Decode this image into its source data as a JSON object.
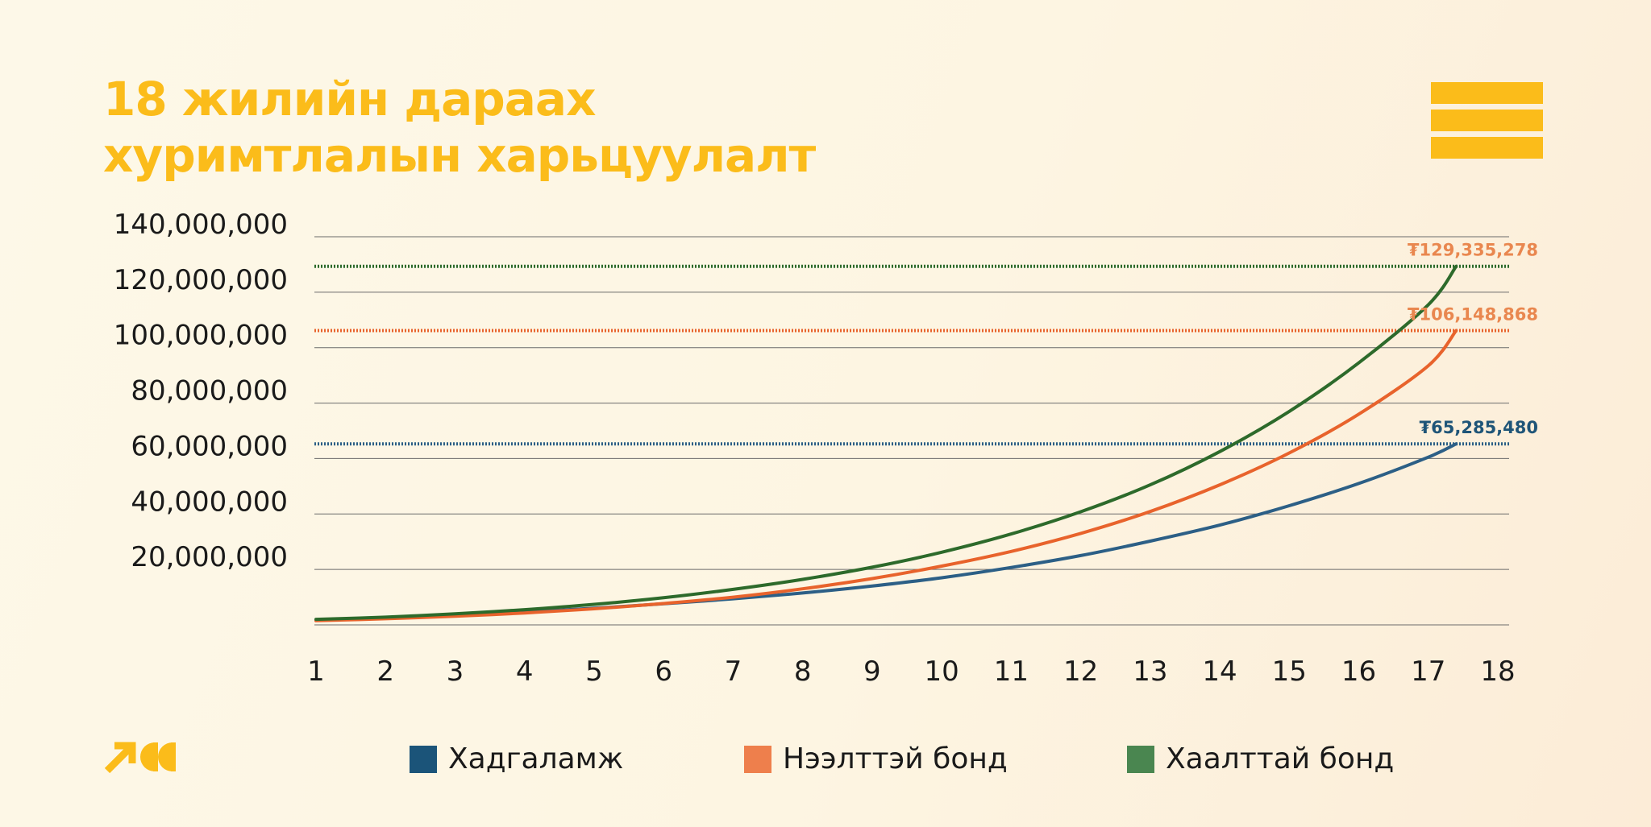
{
  "title": {
    "line1": "18 жилийн дараах",
    "line2": "хуримтлалын харьцуулалт"
  },
  "colors": {
    "accent": "#fbbc1a",
    "savings": "#2c5f86",
    "open_bond": "#e8632c",
    "closed_bond": "#2d6a2b",
    "savings_label": "#1f5578",
    "open_bond_label": "#e9874f",
    "closed_bond_label": "#e9874f",
    "legend_savings": "#1b5479",
    "legend_open_bond": "#ee7f4c",
    "legend_closed_bond": "#4a8650"
  },
  "icons": {
    "menu": "hamburger-menu-icon",
    "logo": "arrow-quote-logo"
  },
  "legend": [
    {
      "label": "Хадгаламж",
      "color_key": "legend_savings"
    },
    {
      "label": "Нээлттэй бонд",
      "color_key": "legend_open_bond"
    },
    {
      "label": "Хаалттай бонд",
      "color_key": "legend_closed_bond"
    }
  ],
  "chart_data": {
    "type": "line",
    "title": "18 жилийн дараах хуримтлалын харьцуулалт",
    "xlabel": "",
    "ylabel": "",
    "x_ticks": [
      1,
      2,
      3,
      4,
      5,
      6,
      7,
      8,
      9,
      10,
      11,
      12,
      13,
      14,
      15,
      16,
      17,
      18
    ],
    "y_ticks": [
      20000000,
      40000000,
      60000000,
      80000000,
      100000000,
      120000000,
      140000000
    ],
    "y_tick_labels": [
      "20,000,000",
      "40,000,000",
      "60,000,000",
      "80,000,000",
      "100,000,000",
      "120,000,000",
      "140,000,000"
    ],
    "xlim": [
      1,
      18
    ],
    "ylim": [
      0,
      140000000
    ],
    "grid": true,
    "legend_position": "bottom",
    "series": [
      {
        "name": "Хадгаламж",
        "color_key": "savings",
        "x": [
          1,
          2,
          3,
          4,
          5,
          6,
          7,
          8,
          9,
          10,
          11,
          12,
          13,
          14,
          15,
          16,
          17,
          17.4
        ],
        "y": [
          1700000,
          2400000,
          3400000,
          4600000,
          6000000,
          7600000,
          9400000,
          11500000,
          14000000,
          17000000,
          20700000,
          25000000,
          30200000,
          36000000,
          43000000,
          51000000,
          60500000,
          65285480
        ],
        "end_label": "₮65,285,480",
        "end_value": 65285480
      },
      {
        "name": "Нээлттэй бонд",
        "color_key": "open_bond",
        "x": [
          1,
          2,
          3,
          4,
          5,
          6,
          7,
          8,
          9,
          10,
          11,
          12,
          13,
          14,
          15,
          16,
          17,
          17.4
        ],
        "y": [
          1500000,
          2200000,
          3100000,
          4300000,
          5800000,
          7700000,
          10000000,
          13000000,
          16700000,
          21200000,
          26500000,
          33000000,
          40900000,
          50500000,
          62000000,
          76000000,
          93500000,
          106148868
        ],
        "end_label": "₮106,148,868",
        "end_value": 106148868
      },
      {
        "name": "Хаалттай бонд",
        "color_key": "closed_bond",
        "x": [
          1,
          2,
          3,
          4,
          5,
          6,
          7,
          8,
          9,
          10,
          11,
          12,
          13,
          14,
          15,
          16,
          17,
          17.4
        ],
        "y": [
          2000000,
          2800000,
          4000000,
          5500000,
          7400000,
          9800000,
          12800000,
          16400000,
          20800000,
          26200000,
          32800000,
          40800000,
          50500000,
          62500000,
          77000000,
          94500000,
          115500000,
          129335278
        ],
        "end_label": "₮129,335,278",
        "end_value": 129335278
      }
    ]
  }
}
